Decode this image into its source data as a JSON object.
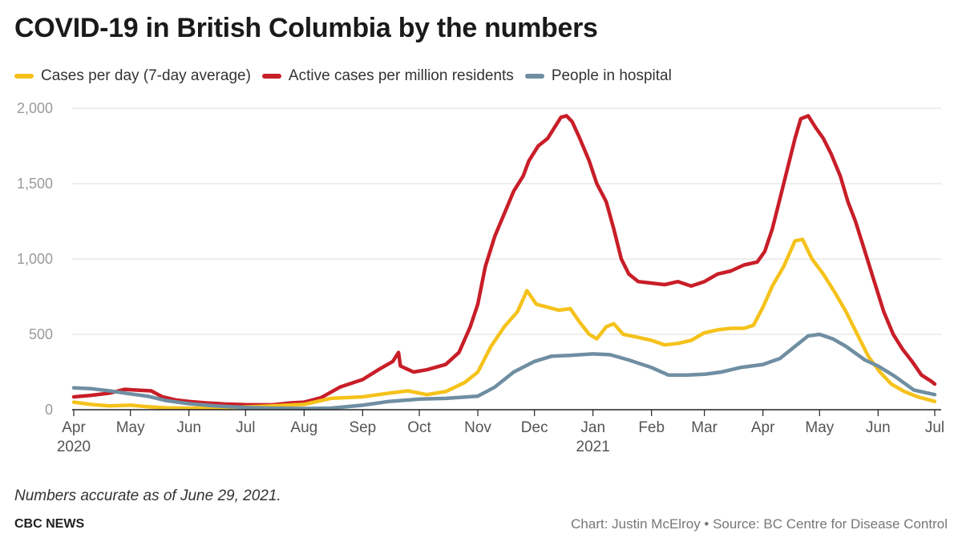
{
  "header": {
    "title": "COVID-19 in British Columbia by the numbers"
  },
  "legend": [
    {
      "label": "Cases per day (7-day average)",
      "color": "#f5c21b"
    },
    {
      "label": "Active cases per million residents",
      "color": "#c81e28"
    },
    {
      "label": "People in hospital",
      "color": "#6f8ea2"
    }
  ],
  "footer": {
    "note": "Numbers accurate as of June 29, 2021.",
    "brand": "CBC NEWS",
    "credit": "Chart: Justin McElroy • Source: BC Centre for Disease Control"
  },
  "chart_data": {
    "type": "line",
    "title": "COVID-19 in British Columbia by the numbers",
    "xlabel": "",
    "ylabel": "",
    "ylim": [
      0,
      2000
    ],
    "xlim": [
      "2020-04-01",
      "2021-07-01"
    ],
    "grid": "horizontal",
    "legend_position": "top-left",
    "y_ticks": [
      {
        "value": 0,
        "label": "0"
      },
      {
        "value": 500,
        "label": "500"
      },
      {
        "value": 1000,
        "label": "1,000"
      },
      {
        "value": 1500,
        "label": "1,500"
      },
      {
        "value": 2000,
        "label": "2,000"
      }
    ],
    "x_ticks": [
      {
        "date": "2020-04-01",
        "label": "Apr",
        "year": "2020"
      },
      {
        "date": "2020-05-01",
        "label": "May"
      },
      {
        "date": "2020-06-01",
        "label": "Jun"
      },
      {
        "date": "2020-07-01",
        "label": "Jul"
      },
      {
        "date": "2020-08-01",
        "label": "Aug"
      },
      {
        "date": "2020-09-01",
        "label": "Sep"
      },
      {
        "date": "2020-10-01",
        "label": "Oct"
      },
      {
        "date": "2020-11-01",
        "label": "Nov"
      },
      {
        "date": "2020-12-01",
        "label": "Dec"
      },
      {
        "date": "2021-01-01",
        "label": "Jan",
        "year": "2021"
      },
      {
        "date": "2021-02-01",
        "label": "Feb"
      },
      {
        "date": "2021-03-01",
        "label": "Mar"
      },
      {
        "date": "2021-04-01",
        "label": "Apr"
      },
      {
        "date": "2021-05-01",
        "label": "May"
      },
      {
        "date": "2021-06-01",
        "label": "Jun"
      },
      {
        "date": "2021-07-01",
        "label": "Jul"
      }
    ],
    "series": [
      {
        "name": "Active cases per million residents",
        "color": "#c81e28",
        "points": [
          [
            "2020-04-01",
            85
          ],
          [
            "2020-04-10",
            95
          ],
          [
            "2020-04-20",
            110
          ],
          [
            "2020-04-28",
            135
          ],
          [
            "2020-05-05",
            130
          ],
          [
            "2020-05-12",
            125
          ],
          [
            "2020-05-18",
            85
          ],
          [
            "2020-05-25",
            65
          ],
          [
            "2020-06-01",
            55
          ],
          [
            "2020-06-10",
            45
          ],
          [
            "2020-06-20",
            38
          ],
          [
            "2020-07-01",
            33
          ],
          [
            "2020-07-15",
            32
          ],
          [
            "2020-07-25",
            45
          ],
          [
            "2020-08-01",
            50
          ],
          [
            "2020-08-10",
            80
          ],
          [
            "2020-08-20",
            150
          ],
          [
            "2020-09-01",
            200
          ],
          [
            "2020-09-10",
            270
          ],
          [
            "2020-09-17",
            320
          ],
          [
            "2020-09-20",
            380
          ],
          [
            "2020-09-21",
            290
          ],
          [
            "2020-09-28",
            250
          ],
          [
            "2020-10-05",
            265
          ],
          [
            "2020-10-15",
            300
          ],
          [
            "2020-10-22",
            380
          ],
          [
            "2020-10-28",
            550
          ],
          [
            "2020-11-01",
            700
          ],
          [
            "2020-11-05",
            950
          ],
          [
            "2020-11-10",
            1150
          ],
          [
            "2020-11-15",
            1300
          ],
          [
            "2020-11-20",
            1450
          ],
          [
            "2020-11-25",
            1550
          ],
          [
            "2020-11-28",
            1650
          ],
          [
            "2020-12-03",
            1750
          ],
          [
            "2020-12-08",
            1800
          ],
          [
            "2020-12-12",
            1880
          ],
          [
            "2020-12-15",
            1940
          ],
          [
            "2020-12-18",
            1950
          ],
          [
            "2020-12-21",
            1910
          ],
          [
            "2020-12-25",
            1800
          ],
          [
            "2020-12-30",
            1650
          ],
          [
            "2021-01-03",
            1500
          ],
          [
            "2021-01-08",
            1380
          ],
          [
            "2021-01-12",
            1200
          ],
          [
            "2021-01-16",
            1000
          ],
          [
            "2021-01-20",
            900
          ],
          [
            "2021-01-25",
            850
          ],
          [
            "2021-02-01",
            840
          ],
          [
            "2021-02-08",
            830
          ],
          [
            "2021-02-15",
            850
          ],
          [
            "2021-02-22",
            820
          ],
          [
            "2021-03-01",
            850
          ],
          [
            "2021-03-08",
            900
          ],
          [
            "2021-03-15",
            920
          ],
          [
            "2021-03-22",
            960
          ],
          [
            "2021-03-29",
            980
          ],
          [
            "2021-04-02",
            1050
          ],
          [
            "2021-04-06",
            1200
          ],
          [
            "2021-04-10",
            1400
          ],
          [
            "2021-04-14",
            1600
          ],
          [
            "2021-04-18",
            1800
          ],
          [
            "2021-04-21",
            1930
          ],
          [
            "2021-04-25",
            1950
          ],
          [
            "2021-04-29",
            1870
          ],
          [
            "2021-05-03",
            1800
          ],
          [
            "2021-05-07",
            1700
          ],
          [
            "2021-05-12",
            1550
          ],
          [
            "2021-05-16",
            1380
          ],
          [
            "2021-05-20",
            1250
          ],
          [
            "2021-05-25",
            1050
          ],
          [
            "2021-05-30",
            850
          ],
          [
            "2021-06-04",
            650
          ],
          [
            "2021-06-09",
            500
          ],
          [
            "2021-06-14",
            400
          ],
          [
            "2021-06-19",
            320
          ],
          [
            "2021-06-24",
            230
          ],
          [
            "2021-06-29",
            190
          ],
          [
            "2021-07-01",
            170
          ]
        ]
      },
      {
        "name": "Cases per day (7-day average)",
        "color": "#f5c21b",
        "points": [
          [
            "2020-04-01",
            50
          ],
          [
            "2020-04-10",
            35
          ],
          [
            "2020-04-20",
            25
          ],
          [
            "2020-05-01",
            30
          ],
          [
            "2020-05-10",
            20
          ],
          [
            "2020-05-20",
            12
          ],
          [
            "2020-06-01",
            10
          ],
          [
            "2020-06-15",
            12
          ],
          [
            "2020-07-01",
            18
          ],
          [
            "2020-07-15",
            25
          ],
          [
            "2020-08-01",
            35
          ],
          [
            "2020-08-15",
            75
          ],
          [
            "2020-09-01",
            85
          ],
          [
            "2020-09-15",
            110
          ],
          [
            "2020-09-25",
            125
          ],
          [
            "2020-10-05",
            100
          ],
          [
            "2020-10-15",
            120
          ],
          [
            "2020-10-25",
            180
          ],
          [
            "2020-11-01",
            250
          ],
          [
            "2020-11-08",
            420
          ],
          [
            "2020-11-15",
            550
          ],
          [
            "2020-11-22",
            650
          ],
          [
            "2020-11-27",
            790
          ],
          [
            "2020-12-02",
            700
          ],
          [
            "2020-12-08",
            680
          ],
          [
            "2020-12-14",
            660
          ],
          [
            "2020-12-20",
            670
          ],
          [
            "2020-12-25",
            580
          ],
          [
            "2020-12-30",
            500
          ],
          [
            "2021-01-03",
            470
          ],
          [
            "2021-01-08",
            550
          ],
          [
            "2021-01-12",
            570
          ],
          [
            "2021-01-17",
            500
          ],
          [
            "2021-01-25",
            480
          ],
          [
            "2021-02-01",
            460
          ],
          [
            "2021-02-08",
            430
          ],
          [
            "2021-02-15",
            440
          ],
          [
            "2021-02-22",
            460
          ],
          [
            "2021-03-01",
            510
          ],
          [
            "2021-03-08",
            530
          ],
          [
            "2021-03-15",
            540
          ],
          [
            "2021-03-22",
            540
          ],
          [
            "2021-03-27",
            560
          ],
          [
            "2021-04-01",
            680
          ],
          [
            "2021-04-06",
            820
          ],
          [
            "2021-04-12",
            950
          ],
          [
            "2021-04-18",
            1120
          ],
          [
            "2021-04-22",
            1130
          ],
          [
            "2021-04-27",
            1000
          ],
          [
            "2021-05-03",
            900
          ],
          [
            "2021-05-09",
            780
          ],
          [
            "2021-05-15",
            650
          ],
          [
            "2021-05-21",
            500
          ],
          [
            "2021-05-27",
            350
          ],
          [
            "2021-06-02",
            250
          ],
          [
            "2021-06-08",
            170
          ],
          [
            "2021-06-15",
            120
          ],
          [
            "2021-06-22",
            85
          ],
          [
            "2021-07-01",
            55
          ]
        ]
      },
      {
        "name": "People in hospital",
        "color": "#6f8ea2",
        "points": [
          [
            "2020-04-01",
            145
          ],
          [
            "2020-04-10",
            140
          ],
          [
            "2020-04-20",
            125
          ],
          [
            "2020-05-01",
            105
          ],
          [
            "2020-05-10",
            90
          ],
          [
            "2020-05-20",
            60
          ],
          [
            "2020-06-01",
            40
          ],
          [
            "2020-06-15",
            25
          ],
          [
            "2020-07-01",
            15
          ],
          [
            "2020-07-15",
            10
          ],
          [
            "2020-08-01",
            8
          ],
          [
            "2020-08-15",
            10
          ],
          [
            "2020-09-01",
            30
          ],
          [
            "2020-09-15",
            55
          ],
          [
            "2020-10-01",
            70
          ],
          [
            "2020-10-15",
            75
          ],
          [
            "2020-11-01",
            90
          ],
          [
            "2020-11-10",
            150
          ],
          [
            "2020-11-20",
            250
          ],
          [
            "2020-12-01",
            320
          ],
          [
            "2020-12-10",
            355
          ],
          [
            "2020-12-20",
            360
          ],
          [
            "2021-01-01",
            370
          ],
          [
            "2021-01-10",
            365
          ],
          [
            "2021-01-20",
            330
          ],
          [
            "2021-02-01",
            280
          ],
          [
            "2021-02-10",
            230
          ],
          [
            "2021-02-20",
            230
          ],
          [
            "2021-03-01",
            235
          ],
          [
            "2021-03-10",
            250
          ],
          [
            "2021-03-20",
            280
          ],
          [
            "2021-04-01",
            300
          ],
          [
            "2021-04-10",
            340
          ],
          [
            "2021-04-18",
            420
          ],
          [
            "2021-04-25",
            490
          ],
          [
            "2021-05-01",
            500
          ],
          [
            "2021-05-08",
            470
          ],
          [
            "2021-05-15",
            420
          ],
          [
            "2021-05-25",
            330
          ],
          [
            "2021-06-01",
            290
          ],
          [
            "2021-06-10",
            220
          ],
          [
            "2021-06-20",
            130
          ],
          [
            "2021-07-01",
            100
          ]
        ]
      }
    ]
  }
}
